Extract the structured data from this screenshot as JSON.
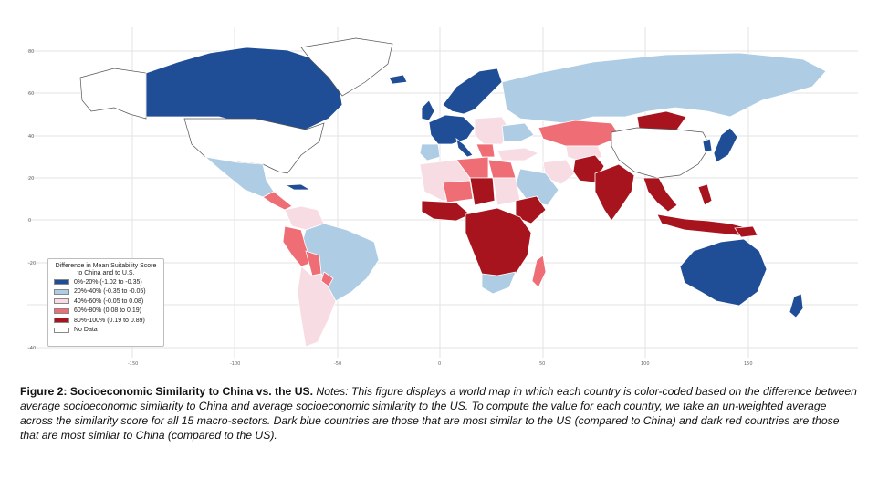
{
  "legend": {
    "title": "Difference in Mean Suitability Score to China and to U.S.",
    "items": [
      {
        "label": "0%-20% (-1.02 to -0.35)",
        "color": "#1f4e96"
      },
      {
        "label": "20%-40% (-0.35 to -0.05)",
        "color": "#aecde4"
      },
      {
        "label": "40%-60% (-0.05 to 0.08)",
        "color": "#f7dde3"
      },
      {
        "label": "60%-80% (0.08 to 0.19)",
        "color": "#ef6d74"
      },
      {
        "label": "80%-100% (0.19 to 0.89)",
        "color": "#a7141e"
      },
      {
        "label": "No Data",
        "color": "#ffffff"
      }
    ]
  },
  "axes": {
    "x_ticks": [
      "-150",
      "-100",
      "-50",
      "0",
      "50",
      "100",
      "150"
    ],
    "y_ticks": [
      "80",
      "60",
      "40",
      "20",
      "0",
      "-20",
      "-40"
    ]
  },
  "caption": {
    "title": "Figure 2: Socioeconomic Similarity to China vs. the US.",
    "notes": "Notes: This figure displays a world map in which each country is color-coded based on the difference between average socioeconomic similarity to China and average socioeconomic similarity to the US. To compute the value for each country, we take an un-weighted average across the similarity score for all 15 macro-sectors. Dark blue countries are those that are most similar to the US (compared to China) and dark red countries are those that are most similar to China (compared to the US)."
  }
}
